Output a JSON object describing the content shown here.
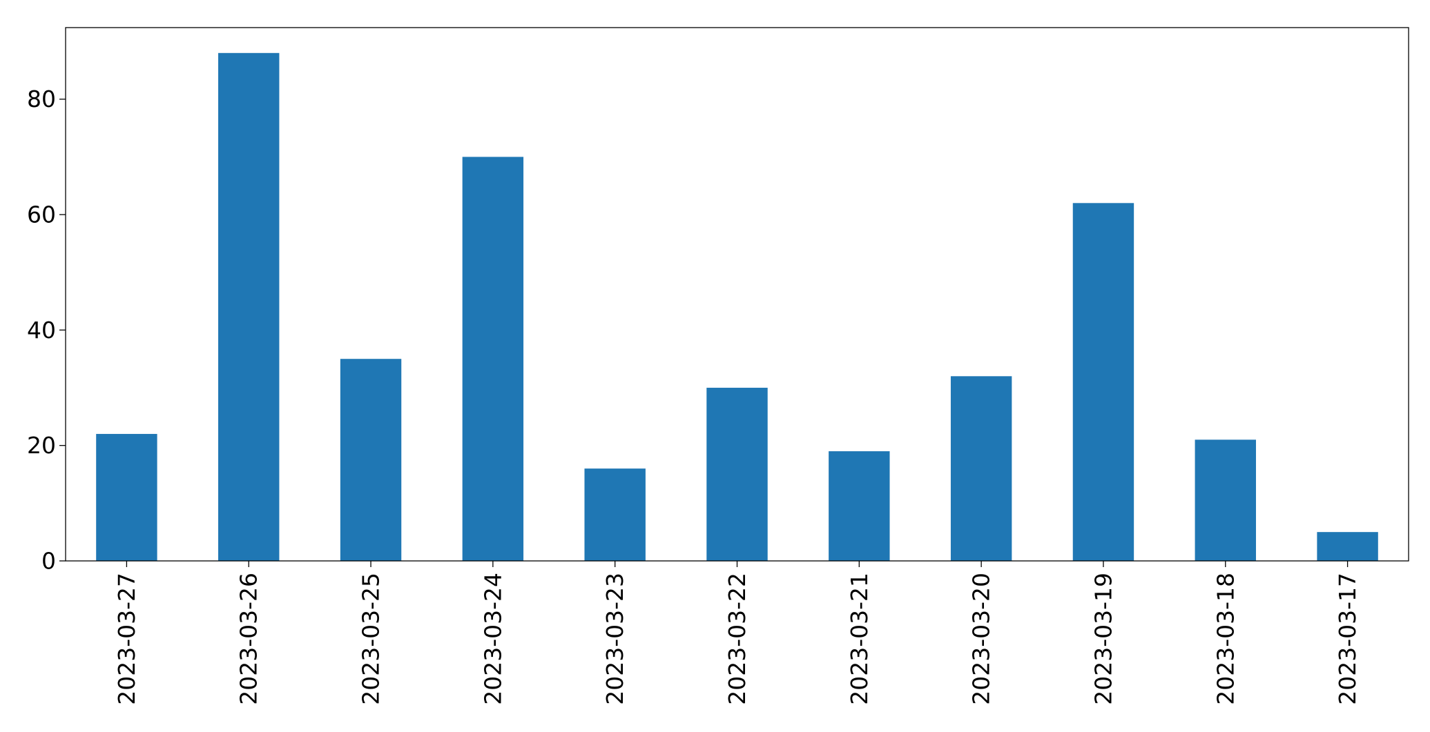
{
  "chart_data": {
    "type": "bar",
    "title": "",
    "xlabel": "",
    "ylabel": "",
    "categories": [
      "2023-03-27",
      "2023-03-26",
      "2023-03-25",
      "2023-03-24",
      "2023-03-23",
      "2023-03-22",
      "2023-03-21",
      "2023-03-20",
      "2023-03-19",
      "2023-03-18",
      "2023-03-17"
    ],
    "values": [
      22,
      88,
      35,
      70,
      16,
      30,
      19,
      32,
      62,
      21,
      5
    ],
    "ylim": [
      0,
      92.4
    ],
    "yticks": [
      0,
      20,
      40,
      60,
      80
    ],
    "grid": false,
    "legend": "none",
    "bar_color": "#1f77b4"
  }
}
